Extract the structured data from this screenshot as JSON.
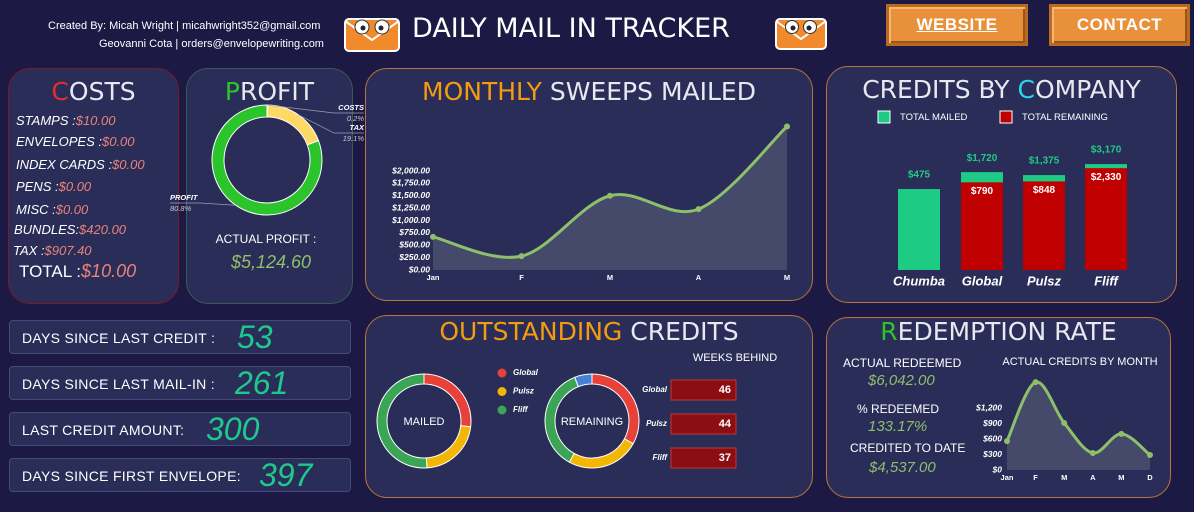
{
  "header": {
    "credit_lines": [
      "Created By: Micah Wright | micahwright352@gmail.com",
      "Geovanni Cota | orders@envelopewriting.com"
    ],
    "title": "DAILY MAIL IN TRACKER",
    "buttons": [
      "WEBSITE",
      "CONTACT"
    ]
  },
  "costs": {
    "title": "COSTS",
    "items": [
      {
        "label": "STAMPS :",
        "value": "$10.00"
      },
      {
        "label": "ENVELOPES :",
        "value": "$0.00"
      },
      {
        "label": "INDEX CARDS :",
        "value": "$0.00"
      },
      {
        "label": "PENS :",
        "value": "$0.00"
      },
      {
        "label": "MISC :",
        "value": "$0.00"
      },
      {
        "label": "BUNDLES:",
        "value": "$420.00"
      },
      {
        "label": "TAX :",
        "value": "$907.40"
      }
    ],
    "total": {
      "label": "TOTAL :",
      "value": "$10.00"
    }
  },
  "profit_panel": {
    "label": "ACTUAL PROFIT :",
    "value": "$5,124.60"
  },
  "stats": [
    {
      "label": "DAYS SINCE LAST CREDIT :",
      "value": 53
    },
    {
      "label": "DAYS SINCE LAST MAIL-IN :",
      "value": 261
    },
    {
      "label": "LAST CREDIT AMOUNT:",
      "value": 300
    },
    {
      "label": "DAYS SINCE FIRST ENVELOPE:",
      "value": 397
    }
  ],
  "outstanding": {
    "title": [
      "OUTSTANDING",
      "CREDITS"
    ],
    "weeks_behind": {
      "title": "WEEKS BEHIND",
      "rows": [
        {
          "name": "Global",
          "value": 46
        },
        {
          "name": "Pulsz",
          "value": 44
        },
        {
          "name": "Fliff",
          "value": 37
        }
      ]
    }
  },
  "redemption": {
    "title": "REDEMPTION RATE",
    "stats": [
      {
        "label": "ACTUAL REDEEMED",
        "value": "$6,042.00"
      },
      {
        "label": "% REDEEMED",
        "value": "133.17%"
      },
      {
        "label": "CREDITED TO DATE",
        "value": "$4,537.00"
      }
    ]
  },
  "chart_data": [
    {
      "type": "pie",
      "title": "PROFIT",
      "categories": [
        "COSTS",
        "TAX",
        "PROFIT"
      ],
      "values": [
        0.2,
        19.1,
        80.8
      ],
      "value_labels": [
        "0.2%",
        "19.1%",
        "80.8%"
      ],
      "colors": [
        "#a6a6a6",
        "#ffd966",
        "#2bc52b"
      ]
    },
    {
      "type": "area",
      "title": [
        "MONTHLY",
        "SWEEPS MAILED"
      ],
      "categories": [
        "Jan",
        "F",
        "M",
        "A",
        "M"
      ],
      "values": [
        670,
        280,
        1500,
        1230,
        2900
      ],
      "color": "#8fbf6b",
      "ylim": [
        0,
        3000
      ],
      "yticks": [
        {
          "value": 0,
          "label": "$0.00"
        },
        {
          "value": 250,
          "label": "$250.00"
        },
        {
          "value": 500,
          "label": "$500.00"
        },
        {
          "value": 750,
          "label": "$750.00"
        },
        {
          "value": 1000,
          "label": "$1,000.00"
        },
        {
          "value": 1250,
          "label": "$1,250.00"
        },
        {
          "value": 1500,
          "label": "$1,500.00"
        },
        {
          "value": 1750,
          "label": "$1,750.00"
        },
        {
          "value": 2000,
          "label": "$2,000.00"
        }
      ]
    },
    {
      "type": "bar",
      "title": [
        "CREDITS BY",
        "COMPANY"
      ],
      "categories": [
        "Chumba",
        "Global",
        "Pulsz",
        "Fliff"
      ],
      "log_scale": true,
      "ylim": [
        1,
        10000
      ],
      "series": [
        {
          "name": "TOTAL MAILED",
          "color": "#1dcb85",
          "values": [
            475,
            1720,
            1375,
            3170
          ],
          "value_labels": [
            "$475",
            "$1,720",
            "$1,375",
            "$3,170"
          ]
        },
        {
          "name": "TOTAL REMAINING",
          "color": "#c00000",
          "values": [
            null,
            790,
            848,
            2330
          ],
          "value_labels": [
            null,
            "$790",
            "$848",
            "$2,330"
          ]
        }
      ]
    },
    {
      "type": "donut",
      "center_label": "MAILED",
      "categories": [
        "Global",
        "Pulsz",
        "Fliff"
      ],
      "values": [
        27,
        22,
        51
      ],
      "colors": [
        "#e8413a",
        "#f2b705",
        "#3aa655"
      ]
    },
    {
      "type": "donut",
      "center_label": "REMAINING",
      "categories": [
        "Global",
        "Pulsz",
        "Fliff",
        null
      ],
      "values": [
        33,
        25,
        36,
        6
      ],
      "colors": [
        "#e8413a",
        "#f2b705",
        "#3aa655",
        "#4a7fd8"
      ]
    },
    {
      "type": "area",
      "title": "ACTUAL CREDITS BY MONTH",
      "categories": [
        "Jan",
        "F",
        "M",
        "A",
        "M",
        "D"
      ],
      "values": [
        560,
        1700,
        910,
        330,
        700,
        290
      ],
      "color": "#8fbf6b",
      "ylim": [
        0,
        1800
      ],
      "yticks": [
        {
          "value": 0,
          "label": "$0"
        },
        {
          "value": 300,
          "label": "$300"
        },
        {
          "value": 600,
          "label": "$600"
        },
        {
          "value": 900,
          "label": "$900"
        },
        {
          "value": 1200,
          "label": "$1,200"
        }
      ]
    }
  ]
}
